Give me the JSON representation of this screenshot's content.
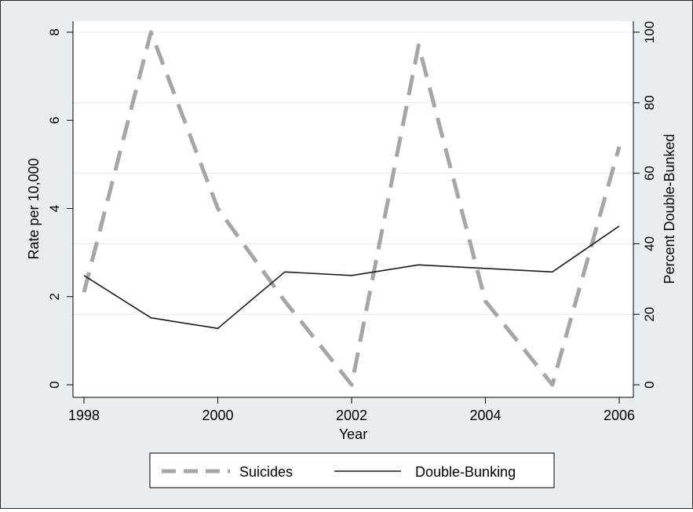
{
  "chart_data": {
    "type": "line",
    "xlabel": "Year",
    "ylabel_left": "Rate per 10,000",
    "ylabel_right": "Percent Double-Bunked",
    "x": [
      1998,
      1999,
      2000,
      2001,
      2002,
      2003,
      2004,
      2005,
      2006
    ],
    "xlim": [
      1998,
      2006
    ],
    "xticks": [
      1998,
      2000,
      2002,
      2004,
      2006
    ],
    "ylim_left": [
      0,
      8
    ],
    "yticks_left": [
      0,
      2,
      4,
      6,
      8
    ],
    "ylim_right": [
      0,
      100
    ],
    "yticks_right": [
      0,
      20,
      40,
      60,
      80,
      100
    ],
    "grid": true,
    "legend_position": "bottom",
    "series": [
      {
        "name": "Suicides",
        "axis": "left",
        "style": "dashed",
        "color": "#a6a6a6",
        "values": [
          2.1,
          8.0,
          4.0,
          1.9,
          0.0,
          7.7,
          1.9,
          0.0,
          5.4
        ]
      },
      {
        "name": "Double-Bunking",
        "axis": "right",
        "style": "solid",
        "color": "#1a1a1a",
        "values": [
          31,
          19,
          16,
          32,
          31,
          34,
          33,
          32,
          45
        ]
      }
    ]
  }
}
